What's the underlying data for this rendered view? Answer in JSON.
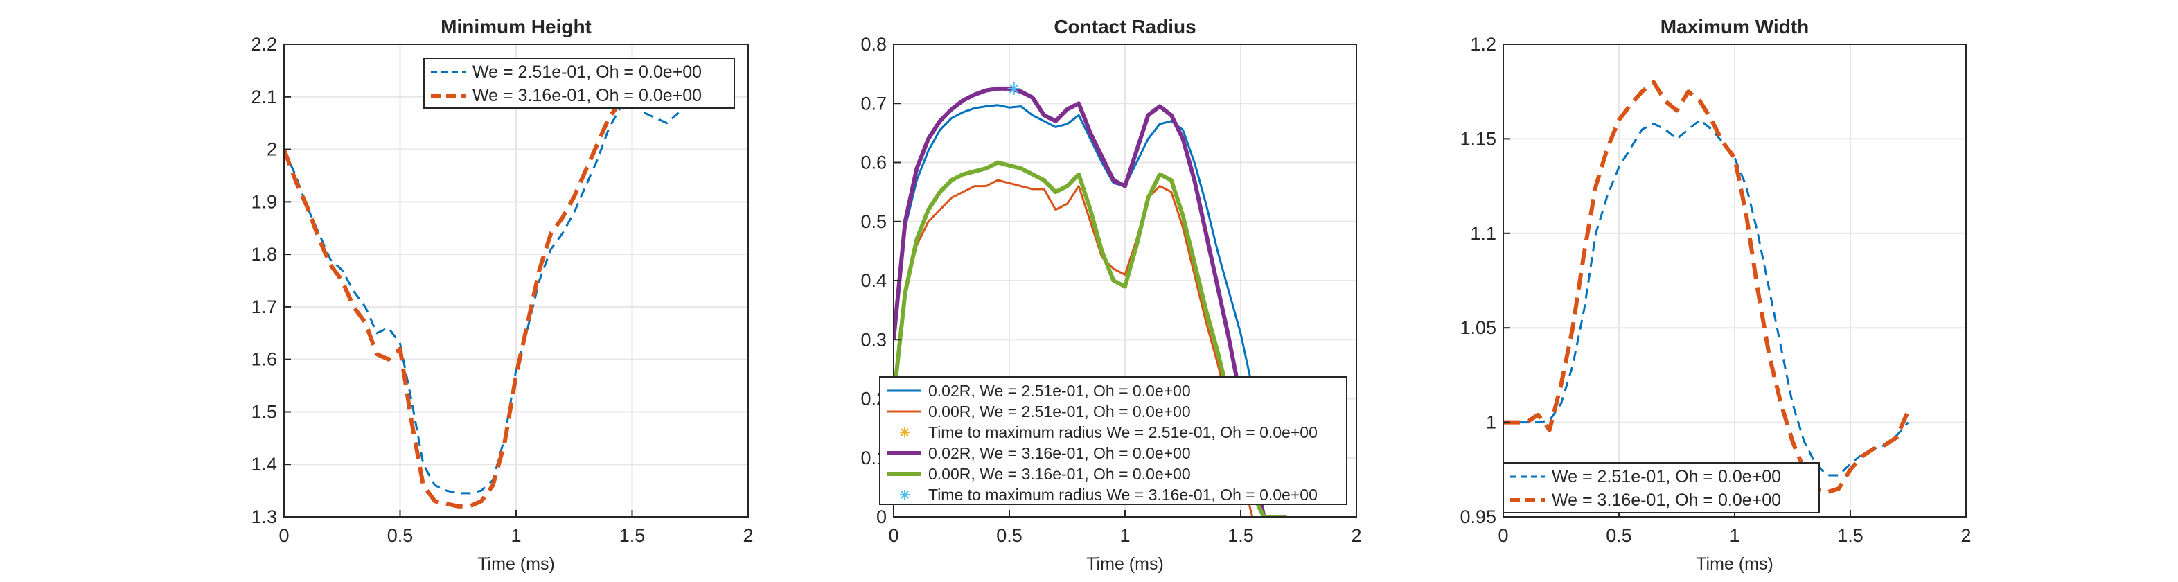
{
  "figure": {
    "background": "#ffffff",
    "axis_color": "#262626",
    "grid_color": "#e6e6e6"
  },
  "chart_data": [
    {
      "type": "line",
      "title": "Minimum Height",
      "xlabel": "Time (ms)",
      "ylabel": "",
      "xlim": [
        0,
        2
      ],
      "ylim": [
        1.3,
        2.2
      ],
      "xticks": [
        0,
        0.5,
        1,
        1.5,
        2
      ],
      "xtick_labels": [
        "0",
        "0.5",
        "1",
        "1.5",
        "2"
      ],
      "yticks": [
        1.3,
        1.4,
        1.5,
        1.6,
        1.7,
        1.8,
        1.9,
        2.0,
        2.1,
        2.2
      ],
      "ytick_labels": [
        "1.3",
        "1.4",
        "1.5",
        "1.6",
        "1.7",
        "1.8",
        "1.9",
        "2",
        "2.1",
        "2.2"
      ],
      "grid": true,
      "legend_position": "top-right",
      "series": [
        {
          "name": "We = 2.51e-01, Oh = 0.0e+00",
          "color": "#0072bd",
          "style": "dashed",
          "width": "thin",
          "x": [
            0,
            0.05,
            0.1,
            0.15,
            0.2,
            0.25,
            0.3,
            0.35,
            0.4,
            0.45,
            0.5,
            0.55,
            0.6,
            0.65,
            0.7,
            0.75,
            0.8,
            0.85,
            0.9,
            0.95,
            1.0,
            1.05,
            1.1,
            1.15,
            1.2,
            1.25,
            1.3,
            1.35,
            1.4,
            1.45,
            1.5,
            1.55,
            1.6,
            1.65,
            1.7
          ],
          "y": [
            2.0,
            1.95,
            1.89,
            1.84,
            1.79,
            1.77,
            1.73,
            1.7,
            1.65,
            1.66,
            1.63,
            1.52,
            1.4,
            1.36,
            1.35,
            1.345,
            1.345,
            1.35,
            1.37,
            1.45,
            1.58,
            1.66,
            1.75,
            1.81,
            1.84,
            1.88,
            1.93,
            1.98,
            2.04,
            2.08,
            2.09,
            2.07,
            2.06,
            2.05,
            2.07
          ]
        },
        {
          "name": "We = 3.16e-01, Oh = 0.0e+00",
          "color": "#d95319",
          "style": "dashed",
          "width": "thick",
          "x": [
            0,
            0.05,
            0.1,
            0.15,
            0.2,
            0.25,
            0.3,
            0.35,
            0.4,
            0.45,
            0.5,
            0.55,
            0.6,
            0.65,
            0.7,
            0.75,
            0.8,
            0.85,
            0.9,
            0.95,
            1.0,
            1.05,
            1.1,
            1.15,
            1.2,
            1.25,
            1.3,
            1.35,
            1.4,
            1.45,
            1.5,
            1.55,
            1.6
          ],
          "y": [
            2.0,
            1.94,
            1.89,
            1.83,
            1.78,
            1.75,
            1.7,
            1.67,
            1.61,
            1.6,
            1.62,
            1.48,
            1.36,
            1.33,
            1.325,
            1.32,
            1.32,
            1.33,
            1.36,
            1.44,
            1.57,
            1.67,
            1.77,
            1.84,
            1.87,
            1.91,
            1.96,
            2.01,
            2.06,
            2.09,
            2.1,
            2.1,
            2.08
          ]
        }
      ]
    },
    {
      "type": "line",
      "title": "Contact Radius",
      "xlabel": "Time (ms)",
      "ylabel": "",
      "xlim": [
        0,
        2
      ],
      "ylim": [
        0,
        0.8
      ],
      "xticks": [
        0,
        0.5,
        1,
        1.5,
        2
      ],
      "xtick_labels": [
        "0",
        "0.5",
        "1",
        "1.5",
        "2"
      ],
      "yticks": [
        0,
        0.1,
        0.2,
        0.3,
        0.4,
        0.5,
        0.6,
        0.7,
        0.8
      ],
      "ytick_labels": [
        "0",
        "0.1",
        "0.2",
        "0.3",
        "0.4",
        "0.5",
        "0.6",
        "0.7",
        "0.8"
      ],
      "grid": true,
      "legend_position": "bottom",
      "series": [
        {
          "name": "0.02R, We = 2.51e-01, Oh = 0.0e+00",
          "color": "#0072bd",
          "style": "solid",
          "width": "thin",
          "x": [
            0,
            0.05,
            0.1,
            0.15,
            0.2,
            0.25,
            0.3,
            0.35,
            0.4,
            0.45,
            0.5,
            0.55,
            0.6,
            0.65,
            0.7,
            0.75,
            0.8,
            0.85,
            0.9,
            0.95,
            1.0,
            1.05,
            1.1,
            1.15,
            1.2,
            1.25,
            1.3,
            1.35,
            1.4,
            1.45,
            1.5,
            1.55,
            1.6,
            1.65
          ],
          "y": [
            0.3,
            0.49,
            0.57,
            0.62,
            0.655,
            0.675,
            0.685,
            0.692,
            0.695,
            0.697,
            0.693,
            0.695,
            0.68,
            0.67,
            0.66,
            0.665,
            0.68,
            0.64,
            0.6,
            0.565,
            0.56,
            0.6,
            0.64,
            0.665,
            0.67,
            0.655,
            0.6,
            0.53,
            0.45,
            0.38,
            0.31,
            0.22,
            0.12,
            0.02
          ]
        },
        {
          "name": "0.00R, We = 2.51e-01, Oh = 0.0e+00",
          "color": "#d95319",
          "style": "solid",
          "width": "thin",
          "x": [
            0,
            0.05,
            0.1,
            0.15,
            0.2,
            0.25,
            0.3,
            0.35,
            0.4,
            0.45,
            0.5,
            0.55,
            0.6,
            0.65,
            0.7,
            0.75,
            0.8,
            0.85,
            0.9,
            0.95,
            1.0,
            1.05,
            1.1,
            1.15,
            1.2,
            1.25,
            1.3,
            1.35,
            1.4,
            1.45,
            1.5,
            1.55
          ],
          "y": [
            0.2,
            0.38,
            0.46,
            0.5,
            0.52,
            0.54,
            0.55,
            0.56,
            0.56,
            0.57,
            0.565,
            0.56,
            0.555,
            0.555,
            0.52,
            0.53,
            0.56,
            0.5,
            0.44,
            0.42,
            0.41,
            0.47,
            0.54,
            0.56,
            0.55,
            0.49,
            0.41,
            0.33,
            0.26,
            0.18,
            0.08,
            0.0
          ]
        },
        {
          "name": "Time to maximum radius We = 2.51e-01, Oh = 0.0e+00",
          "color": "#edb120",
          "style": "marker",
          "marker": "asterisk",
          "x": [],
          "y": []
        },
        {
          "name": "0.02R, We = 3.16e-01, Oh = 0.0e+00",
          "color": "#7e2f8e",
          "style": "solid",
          "width": "thick",
          "x": [
            0,
            0.05,
            0.1,
            0.15,
            0.2,
            0.25,
            0.3,
            0.35,
            0.4,
            0.45,
            0.5,
            0.55,
            0.6,
            0.65,
            0.7,
            0.75,
            0.8,
            0.85,
            0.9,
            0.95,
            1.0,
            1.05,
            1.1,
            1.15,
            1.2,
            1.25,
            1.3,
            1.35,
            1.4,
            1.45,
            1.5,
            1.55,
            1.6
          ],
          "y": [
            0.3,
            0.5,
            0.59,
            0.64,
            0.67,
            0.69,
            0.705,
            0.715,
            0.722,
            0.725,
            0.725,
            0.72,
            0.71,
            0.68,
            0.67,
            0.69,
            0.7,
            0.65,
            0.61,
            0.57,
            0.56,
            0.62,
            0.68,
            0.695,
            0.68,
            0.64,
            0.57,
            0.48,
            0.39,
            0.3,
            0.2,
            0.1,
            0.0
          ]
        },
        {
          "name": "0.00R, We = 3.16e-01, Oh = 0.0e+00",
          "color": "#77ac30",
          "style": "solid",
          "width": "thick",
          "x": [
            0,
            0.05,
            0.1,
            0.15,
            0.2,
            0.25,
            0.3,
            0.35,
            0.4,
            0.45,
            0.5,
            0.55,
            0.6,
            0.65,
            0.7,
            0.75,
            0.8,
            0.85,
            0.9,
            0.95,
            1.0,
            1.05,
            1.1,
            1.15,
            1.2,
            1.25,
            1.3,
            1.35,
            1.4,
            1.45,
            1.5,
            1.55,
            1.6,
            1.65,
            1.7
          ],
          "y": [
            0.2,
            0.38,
            0.47,
            0.52,
            0.55,
            0.57,
            0.58,
            0.585,
            0.59,
            0.6,
            0.595,
            0.59,
            0.58,
            0.57,
            0.55,
            0.56,
            0.58,
            0.52,
            0.45,
            0.4,
            0.39,
            0.46,
            0.54,
            0.58,
            0.57,
            0.51,
            0.43,
            0.35,
            0.28,
            0.2,
            0.12,
            0.04,
            0.0,
            0.0,
            0.0
          ]
        },
        {
          "name": "Time to maximum radius We = 3.16e-01, Oh = 0.0e+00",
          "color": "#4dbeee",
          "style": "marker",
          "marker": "asterisk",
          "x": [
            0.52
          ],
          "y": [
            0.725
          ]
        }
      ]
    },
    {
      "type": "line",
      "title": "Maximum Width",
      "xlabel": "Time (ms)",
      "ylabel": "",
      "xlim": [
        0,
        2
      ],
      "ylim": [
        0.95,
        1.2
      ],
      "xticks": [
        0,
        0.5,
        1,
        1.5,
        2
      ],
      "xtick_labels": [
        "0",
        "0.5",
        "1",
        "1.5",
        "2"
      ],
      "yticks": [
        0.95,
        1.0,
        1.05,
        1.1,
        1.15,
        1.2
      ],
      "ytick_labels": [
        "0.95",
        "1",
        "1.05",
        "1.1",
        "1.15",
        "1.2"
      ],
      "grid": true,
      "legend_position": "bottom-left",
      "series": [
        {
          "name": "We = 2.51e-01, Oh = 0.0e+00",
          "color": "#0072bd",
          "style": "dashed",
          "width": "thin",
          "x": [
            0,
            0.05,
            0.1,
            0.15,
            0.2,
            0.25,
            0.3,
            0.35,
            0.4,
            0.45,
            0.5,
            0.55,
            0.6,
            0.65,
            0.7,
            0.75,
            0.8,
            0.85,
            0.9,
            0.95,
            1.0,
            1.05,
            1.1,
            1.15,
            1.2,
            1.25,
            1.3,
            1.35,
            1.4,
            1.45,
            1.5,
            1.55,
            1.6,
            1.65,
            1.7,
            1.75
          ],
          "y": [
            1.0,
            1.0,
            1.0,
            1.0,
            1.001,
            1.01,
            1.03,
            1.06,
            1.1,
            1.12,
            1.135,
            1.145,
            1.155,
            1.158,
            1.155,
            1.15,
            1.155,
            1.16,
            1.155,
            1.148,
            1.14,
            1.125,
            1.1,
            1.07,
            1.04,
            1.01,
            0.99,
            0.978,
            0.972,
            0.972,
            0.978,
            0.983,
            0.986,
            0.988,
            0.993,
            1.0
          ]
        },
        {
          "name": "We = 3.16e-01, Oh = 0.0e+00",
          "color": "#d95319",
          "style": "dashed",
          "width": "thick",
          "x": [
            0,
            0.05,
            0.1,
            0.15,
            0.2,
            0.25,
            0.3,
            0.35,
            0.4,
            0.45,
            0.5,
            0.55,
            0.6,
            0.65,
            0.7,
            0.75,
            0.8,
            0.85,
            0.9,
            0.95,
            1.0,
            1.05,
            1.1,
            1.15,
            1.2,
            1.25,
            1.3,
            1.35,
            1.4,
            1.45,
            1.5,
            1.55,
            1.6,
            1.65,
            1.7,
            1.75
          ],
          "y": [
            1.0,
            1.0,
            1.0,
            1.004,
            0.996,
            1.02,
            1.05,
            1.09,
            1.125,
            1.145,
            1.16,
            1.168,
            1.175,
            1.18,
            1.17,
            1.165,
            1.175,
            1.17,
            1.16,
            1.148,
            1.14,
            1.11,
            1.07,
            1.035,
            1.01,
            0.99,
            0.975,
            0.965,
            0.963,
            0.965,
            0.975,
            0.982,
            0.986,
            0.988,
            0.992,
            1.006
          ]
        }
      ]
    }
  ]
}
